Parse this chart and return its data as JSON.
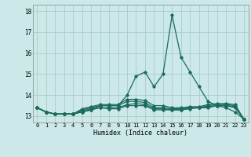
{
  "title": "",
  "xlabel": "Humidex (Indice chaleur)",
  "bg_color": "#cce8e8",
  "line_color": "#1a6b5a",
  "grid_color": "#aacccc",
  "xlim": [
    -0.5,
    23.5
  ],
  "ylim": [
    12.7,
    18.3
  ],
  "yticks": [
    13,
    14,
    15,
    16,
    17,
    18
  ],
  "xticks": [
    0,
    1,
    2,
    3,
    4,
    5,
    6,
    7,
    8,
    9,
    10,
    11,
    12,
    13,
    14,
    15,
    16,
    17,
    18,
    19,
    20,
    21,
    22,
    23
  ],
  "lines": [
    [
      13.4,
      13.2,
      13.1,
      13.1,
      13.1,
      13.2,
      13.3,
      13.5,
      13.5,
      13.5,
      14.0,
      14.9,
      15.1,
      14.4,
      15.0,
      17.8,
      15.8,
      15.1,
      14.4,
      13.7,
      13.5,
      13.4,
      13.2,
      12.85
    ],
    [
      13.4,
      13.2,
      13.1,
      13.1,
      13.1,
      13.2,
      13.3,
      13.4,
      13.35,
      13.35,
      13.5,
      13.5,
      13.5,
      13.3,
      13.3,
      13.3,
      13.3,
      13.4,
      13.4,
      13.4,
      13.5,
      13.5,
      13.4,
      12.85
    ],
    [
      13.4,
      13.2,
      13.1,
      13.1,
      13.1,
      13.25,
      13.35,
      13.4,
      13.4,
      13.4,
      13.55,
      13.6,
      13.55,
      13.35,
      13.35,
      13.3,
      13.3,
      13.35,
      13.4,
      13.45,
      13.5,
      13.5,
      13.45,
      12.85
    ],
    [
      13.4,
      13.2,
      13.1,
      13.1,
      13.1,
      13.3,
      13.4,
      13.5,
      13.5,
      13.5,
      13.7,
      13.7,
      13.65,
      13.4,
      13.4,
      13.35,
      13.35,
      13.4,
      13.4,
      13.5,
      13.55,
      13.55,
      13.5,
      12.85
    ],
    [
      13.4,
      13.2,
      13.1,
      13.1,
      13.1,
      13.35,
      13.45,
      13.55,
      13.55,
      13.55,
      13.8,
      13.8,
      13.75,
      13.5,
      13.5,
      13.4,
      13.4,
      13.45,
      13.45,
      13.55,
      13.6,
      13.6,
      13.55,
      12.85
    ]
  ]
}
